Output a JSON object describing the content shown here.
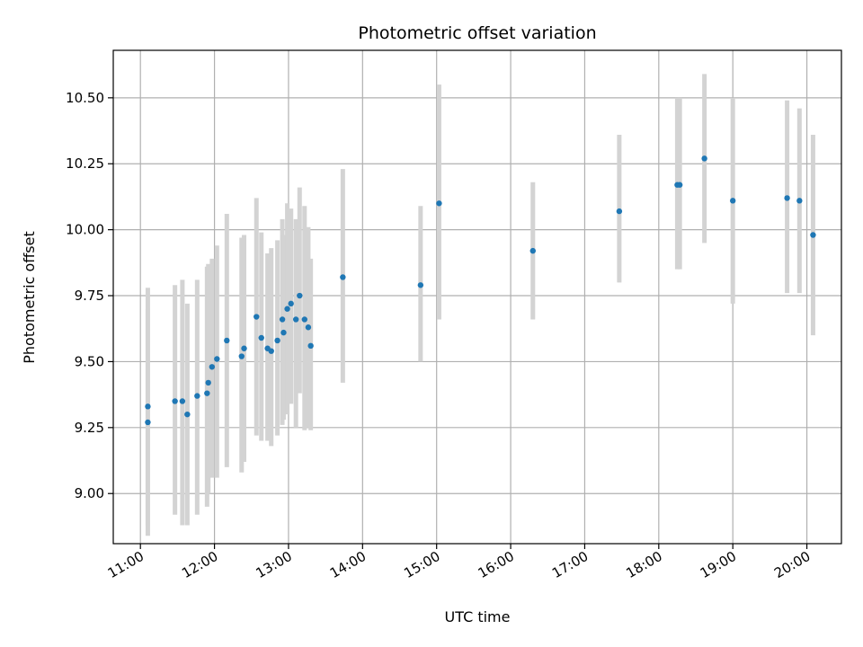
{
  "chart_data": {
    "type": "scatter",
    "title": "Photometric offset variation",
    "xlabel": "UTC time",
    "ylabel": "Photometric offset",
    "x_ticks": [
      "11:00",
      "12:00",
      "13:00",
      "14:00",
      "15:00",
      "16:00",
      "17:00",
      "18:00",
      "19:00",
      "20:00"
    ],
    "y_ticks": [
      "9.00",
      "9.25",
      "9.50",
      "9.75",
      "10.00",
      "10.25",
      "10.50"
    ],
    "xlim": [
      "10:38",
      "20:28"
    ],
    "ylim": [
      8.81,
      10.68
    ],
    "grid": true,
    "colors": {
      "points": "#1f77b4",
      "errorbars": "#d3d3d3",
      "grid": "#b0b0b0"
    },
    "points": [
      {
        "t": "11:06",
        "y": 9.27,
        "lo": 8.84,
        "hi": 9.7
      },
      {
        "t": "11:06",
        "y": 9.33,
        "lo": 8.88,
        "hi": 9.78
      },
      {
        "t": "11:28",
        "y": 9.35,
        "lo": 8.92,
        "hi": 9.79
      },
      {
        "t": "11:34",
        "y": 9.35,
        "lo": 8.88,
        "hi": 9.81
      },
      {
        "t": "11:38",
        "y": 9.3,
        "lo": 8.88,
        "hi": 9.72
      },
      {
        "t": "11:46",
        "y": 9.37,
        "lo": 8.92,
        "hi": 9.81
      },
      {
        "t": "11:54",
        "y": 9.38,
        "lo": 8.95,
        "hi": 9.86
      },
      {
        "t": "11:55",
        "y": 9.42,
        "lo": 9.0,
        "hi": 9.87
      },
      {
        "t": "11:58",
        "y": 9.48,
        "lo": 9.06,
        "hi": 9.89
      },
      {
        "t": "12:02",
        "y": 9.51,
        "lo": 9.06,
        "hi": 9.94
      },
      {
        "t": "12:10",
        "y": 9.58,
        "lo": 9.1,
        "hi": 10.06
      },
      {
        "t": "12:22",
        "y": 9.52,
        "lo": 9.08,
        "hi": 9.97
      },
      {
        "t": "12:24",
        "y": 9.55,
        "lo": 9.12,
        "hi": 9.98
      },
      {
        "t": "12:34",
        "y": 9.67,
        "lo": 9.22,
        "hi": 10.12
      },
      {
        "t": "12:38",
        "y": 9.59,
        "lo": 9.2,
        "hi": 9.99
      },
      {
        "t": "12:43",
        "y": 9.55,
        "lo": 9.2,
        "hi": 9.91
      },
      {
        "t": "12:46",
        "y": 9.54,
        "lo": 9.18,
        "hi": 9.93
      },
      {
        "t": "12:51",
        "y": 9.58,
        "lo": 9.22,
        "hi": 9.96
      },
      {
        "t": "12:55",
        "y": 9.66,
        "lo": 9.26,
        "hi": 10.04
      },
      {
        "t": "12:56",
        "y": 9.61,
        "lo": 9.28,
        "hi": 9.98
      },
      {
        "t": "12:59",
        "y": 9.7,
        "lo": 9.3,
        "hi": 10.1
      },
      {
        "t": "13:02",
        "y": 9.72,
        "lo": 9.34,
        "hi": 10.08
      },
      {
        "t": "13:06",
        "y": 9.66,
        "lo": 9.25,
        "hi": 10.04
      },
      {
        "t": "13:09",
        "y": 9.75,
        "lo": 9.38,
        "hi": 10.16
      },
      {
        "t": "13:13",
        "y": 9.66,
        "lo": 9.24,
        "hi": 10.09
      },
      {
        "t": "13:16",
        "y": 9.63,
        "lo": 9.25,
        "hi": 10.01
      },
      {
        "t": "13:18",
        "y": 9.56,
        "lo": 9.24,
        "hi": 9.89
      },
      {
        "t": "13:44",
        "y": 9.82,
        "lo": 9.42,
        "hi": 10.23
      },
      {
        "t": "14:47",
        "y": 9.79,
        "lo": 9.5,
        "hi": 10.09
      },
      {
        "t": "15:02",
        "y": 10.1,
        "lo": 9.66,
        "hi": 10.55
      },
      {
        "t": "16:18",
        "y": 9.92,
        "lo": 9.66,
        "hi": 10.18
      },
      {
        "t": "17:28",
        "y": 10.07,
        "lo": 9.8,
        "hi": 10.36
      },
      {
        "t": "18:15",
        "y": 10.17,
        "lo": 9.85,
        "hi": 10.5
      },
      {
        "t": "18:17",
        "y": 10.17,
        "lo": 9.85,
        "hi": 10.5
      },
      {
        "t": "18:37",
        "y": 10.27,
        "lo": 9.95,
        "hi": 10.59
      },
      {
        "t": "19:00",
        "y": 10.11,
        "lo": 9.72,
        "hi": 10.5
      },
      {
        "t": "19:44",
        "y": 10.12,
        "lo": 9.76,
        "hi": 10.49
      },
      {
        "t": "19:54",
        "y": 10.11,
        "lo": 9.76,
        "hi": 10.46
      },
      {
        "t": "20:05",
        "y": 9.98,
        "lo": 9.6,
        "hi": 10.36
      }
    ]
  }
}
